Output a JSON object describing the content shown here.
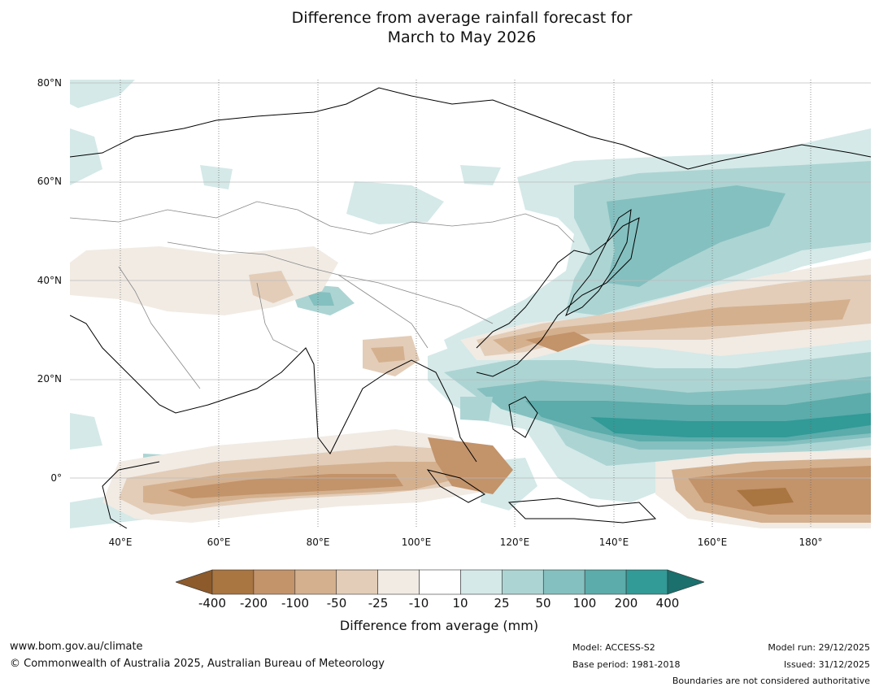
{
  "title": {
    "line1": "Difference from average rainfall forecast for",
    "line2": "March to May 2026"
  },
  "axes": {
    "lat_labels": [
      "80°N",
      "60°N",
      "40°N",
      "20°N",
      "0°"
    ],
    "lon_labels": [
      "40°E",
      "60°E",
      "80°E",
      "100°E",
      "120°E",
      "140°E",
      "160°E",
      "180°"
    ]
  },
  "legend": {
    "title": "Difference from average (mm)",
    "ticks": [
      "-400",
      "-200",
      "-100",
      "-50",
      "-25",
      "-10",
      "10",
      "25",
      "50",
      "100",
      "200",
      "400"
    ],
    "colors": [
      "#8c5a2b",
      "#a97540",
      "#c3936a",
      "#d4b08e",
      "#e3cdb8",
      "#f1ebe4",
      "#ffffff",
      "#d4e9e8",
      "#acd4d3",
      "#84c0bf",
      "#5bacab",
      "#329a97",
      "#1b6f6d"
    ]
  },
  "footer": {
    "website": "www.bom.gov.au/climate",
    "copyright": "© Commonwealth of Australia 2025, Australian Bureau of Meteorology",
    "model": "Model: ACCESS-S2",
    "base_period": "Base period: 1981-2018",
    "model_run": "Model run: 29/12/2025",
    "issued": "Issued: 31/12/2025",
    "disclaimer": "Boundaries are not considered authoritative"
  }
}
